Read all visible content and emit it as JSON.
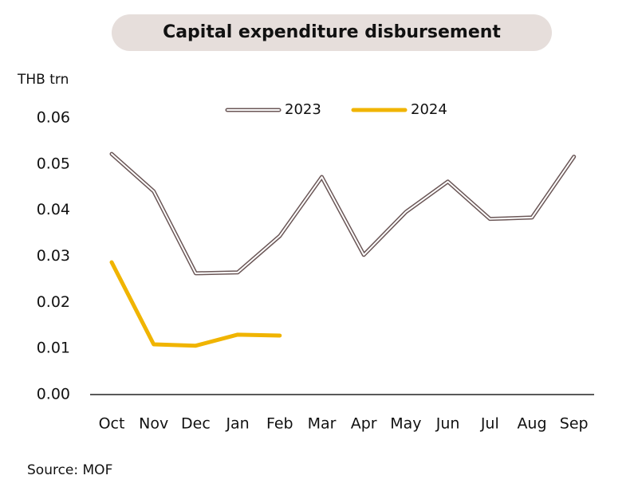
{
  "chart_data": {
    "type": "line",
    "title": "Capital expenditure disbursement",
    "y_label": "THB trn",
    "source": "Source: MOF",
    "categories": [
      "Oct",
      "Nov",
      "Dec",
      "Jan",
      "Feb",
      "Mar",
      "Apr",
      "May",
      "Jun",
      "Jul",
      "Aug",
      "Sep"
    ],
    "series": [
      {
        "name": "2023",
        "color": "#6b5757",
        "values": [
          0.0522,
          0.0441,
          0.0263,
          0.0265,
          0.0344,
          0.0472,
          0.0303,
          0.0396,
          0.0462,
          0.0381,
          0.0384,
          0.0516
        ]
      },
      {
        "name": "2024",
        "color": "#f0b400",
        "values": [
          0.0287,
          0.0109,
          0.0106,
          0.013,
          0.0128,
          null,
          null,
          null,
          null,
          null,
          null,
          null
        ]
      }
    ],
    "ylim": [
      0,
      0.06
    ],
    "yticks": [
      {
        "value": 0,
        "label": "0.00"
      },
      0.01,
      0.02,
      0.03,
      0.04,
      0.05,
      0.06
    ],
    "legend": "top"
  }
}
